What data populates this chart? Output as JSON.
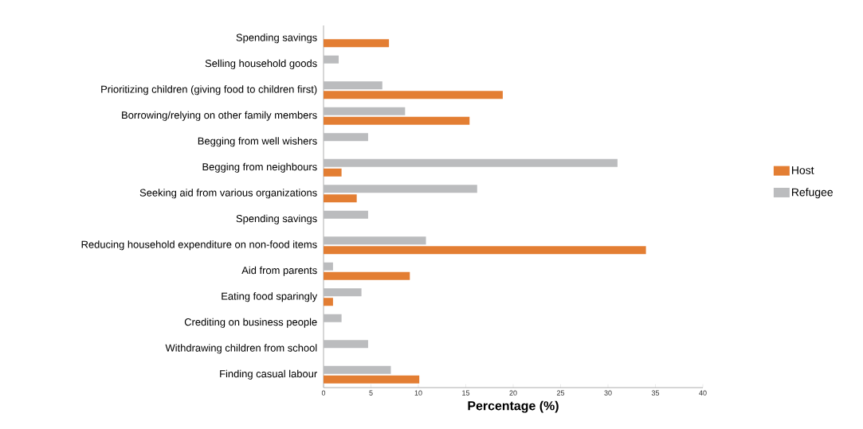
{
  "chart_data": {
    "type": "bar",
    "orientation": "horizontal",
    "xlabel": "Percentage (%)",
    "categories": [
      "Spending savings",
      "Selling household goods",
      "Prioritizing children (giving food to children first)",
      "Borrowing/relying on other family members",
      "Begging from well wishers",
      "Begging from neighbours",
      "Seeking aid from various organizations",
      "Spending savings",
      "Reducing household expenditure on non-food items",
      "Aid from parents",
      "Eating food sparingly",
      "Crediting on business people",
      "Withdrawing children from school",
      "Finding casual labour"
    ],
    "series": [
      {
        "name": "Host",
        "color": "#e37e33",
        "values": [
          6.9,
          null,
          18.9,
          15.4,
          null,
          1.9,
          3.5,
          null,
          34.0,
          9.1,
          1.0,
          null,
          null,
          10.1
        ]
      },
      {
        "name": "Refugee",
        "color": "#bbbcbe",
        "values": [
          null,
          1.6,
          6.2,
          8.6,
          4.7,
          31.0,
          16.2,
          4.7,
          10.8,
          1.0,
          4.0,
          1.9,
          4.7,
          7.1
        ]
      }
    ],
    "xlim": [
      0,
      40
    ],
    "xticks": [
      0,
      5,
      10,
      15,
      20,
      25,
      30,
      35,
      40
    ],
    "grid": false,
    "legend": "right"
  }
}
